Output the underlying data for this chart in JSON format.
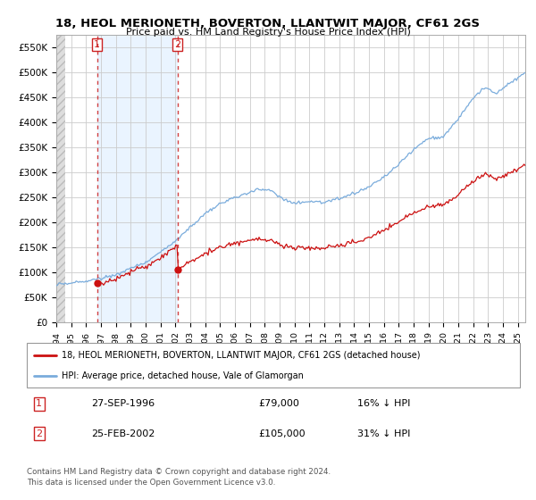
{
  "title": "18, HEOL MERIONETH, BOVERTON, LLANTWIT MAJOR, CF61 2GS",
  "subtitle": "Price paid vs. HM Land Registry's House Price Index (HPI)",
  "ylabel_ticks": [
    "£0",
    "£50K",
    "£100K",
    "£150K",
    "£200K",
    "£250K",
    "£300K",
    "£350K",
    "£400K",
    "£450K",
    "£500K",
    "£550K"
  ],
  "ylabel_values": [
    0,
    50000,
    100000,
    150000,
    200000,
    250000,
    300000,
    350000,
    400000,
    450000,
    500000,
    550000
  ],
  "ylim": [
    0,
    575000
  ],
  "xlim_start": 1994.0,
  "xlim_end": 2025.5,
  "purchase1_date": 1996.74,
  "purchase1_price": 79000,
  "purchase2_date": 2002.15,
  "purchase2_price": 105000,
  "legend_line1": "18, HEOL MERIONETH, BOVERTON, LLANTWIT MAJOR, CF61 2GS (detached house)",
  "legend_line2": "HPI: Average price, detached house, Vale of Glamorgan",
  "annotation1_date": "27-SEP-1996",
  "annotation1_price": "£79,000",
  "annotation1_hpi": "16% ↓ HPI",
  "annotation2_date": "25-FEB-2002",
  "annotation2_price": "£105,000",
  "annotation2_hpi": "31% ↓ HPI",
  "footer": "Contains HM Land Registry data © Crown copyright and database right 2024.\nThis data is licensed under the Open Government Licence v3.0.",
  "hpi_color": "#7aacdc",
  "price_color": "#cc1111",
  "dashed_line_color": "#cc2222",
  "hpi_bg_color": "#ddeeff",
  "hatch_bg_color": "#e0e0e0"
}
